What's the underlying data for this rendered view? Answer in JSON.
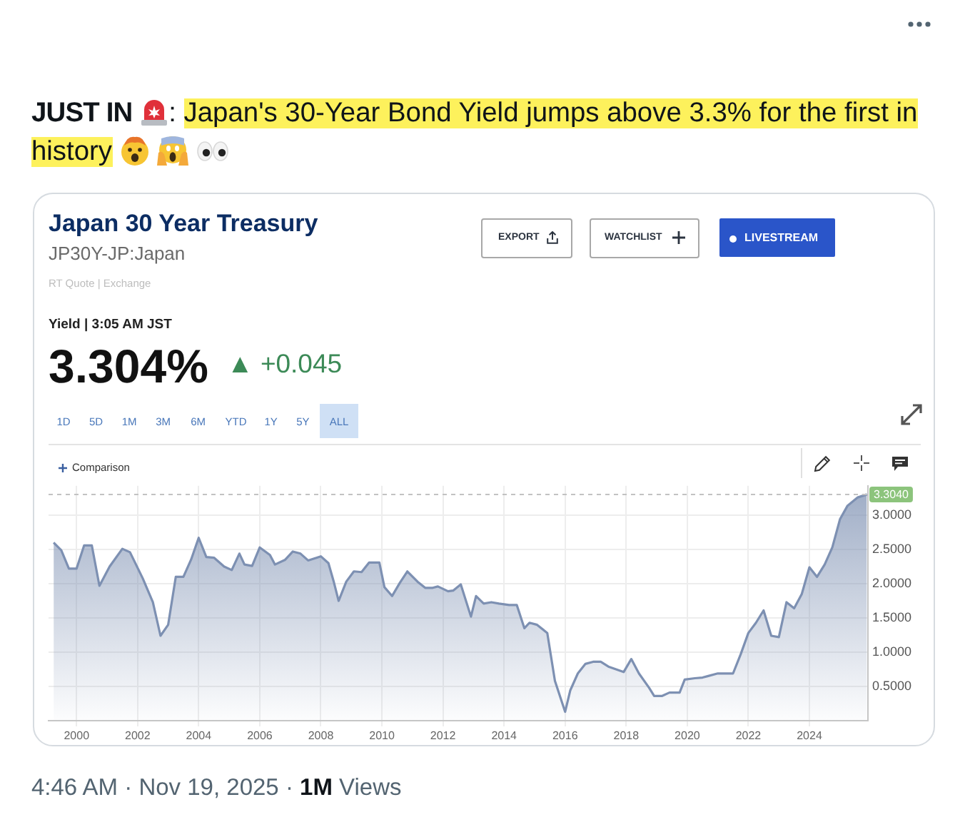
{
  "chart_data": {
    "type": "area",
    "title": "Japan 30 Year Treasury",
    "subtitle": "JP30Y-JP:Japan",
    "annotations": [
      "JUST IN",
      ":",
      "Japan's 30-Year Bond Yield jumps above 3.3% for the first in",
      "history",
      "RT Quote | Exchange",
      "Yield | 3:05 AM JST",
      "3.304%",
      "▲ +0.045",
      "EXPORT",
      "WATCHLIST",
      "LIVESTREAM",
      "1D",
      "5D",
      "1M",
      "3M",
      "6M",
      "YTD",
      "1Y",
      "5Y",
      "ALL",
      "Comparison",
      "4:46 AM · Nov 19, 2025 ·",
      "1M",
      "Views"
    ],
    "x": [
      "1999-04",
      "1999-07",
      "1999-10",
      "2000-01",
      "2000-04",
      "2000-07",
      "2000-10",
      "2001-02",
      "2001-07",
      "2001-10",
      "2002-03",
      "2002-07",
      "2002-10",
      "2003-01",
      "2003-04",
      "2003-07",
      "2003-10",
      "2004-01",
      "2004-04",
      "2004-07",
      "2004-11",
      "2005-02",
      "2005-05",
      "2005-07",
      "2005-10",
      "2006-01",
      "2006-05",
      "2006-07",
      "2006-11",
      "2007-02",
      "2007-05",
      "2007-08",
      "2008-01",
      "2008-04",
      "2008-06",
      "2008-08",
      "2008-11",
      "2009-02",
      "2009-05",
      "2009-08",
      "2009-12",
      "2010-02",
      "2010-05",
      "2010-08",
      "2010-11",
      "2011-03",
      "2011-06",
      "2011-09",
      "2011-11",
      "2012-03",
      "2012-05",
      "2012-08",
      "2012-12",
      "2013-02",
      "2013-05",
      "2013-08",
      "2013-11",
      "2014-03",
      "2014-06",
      "2014-09",
      "2014-11",
      "2015-02",
      "2015-06",
      "2015-09",
      "2016-01",
      "2016-03",
      "2016-06",
      "2016-09",
      "2016-12",
      "2017-03",
      "2017-06",
      "2017-12",
      "2018-03",
      "2018-06",
      "2018-10",
      "2018-12",
      "2019-03",
      "2019-06",
      "2019-10",
      "2019-12",
      "2020-04",
      "2020-07",
      "2020-09",
      "2021-01",
      "2021-04",
      "2021-07",
      "2021-10",
      "2022-01",
      "2022-04",
      "2022-07",
      "2022-10",
      "2023-01",
      "2023-04",
      "2023-07",
      "2023-10",
      "2024-01",
      "2024-04",
      "2024-07",
      "2024-10",
      "2025-01",
      "2025-04",
      "2025-08",
      "2025-11-19"
    ],
    "values": [
      2.6,
      2.49,
      2.22,
      2.22,
      2.56,
      2.56,
      1.97,
      2.25,
      2.51,
      2.46,
      2.08,
      1.73,
      1.24,
      1.4,
      2.1,
      2.1,
      2.35,
      2.67,
      2.39,
      2.38,
      2.25,
      2.2,
      2.44,
      2.28,
      2.26,
      2.53,
      2.42,
      2.28,
      2.35,
      2.47,
      2.44,
      2.34,
      2.4,
      2.3,
      2.04,
      1.75,
      2.03,
      2.18,
      2.17,
      2.31,
      2.31,
      1.95,
      1.82,
      2.01,
      2.18,
      2.03,
      1.94,
      1.94,
      1.96,
      1.89,
      1.9,
      1.99,
      1.52,
      1.82,
      1.71,
      1.73,
      1.71,
      1.69,
      1.69,
      1.35,
      1.43,
      1.4,
      1.28,
      0.58,
      0.13,
      0.44,
      0.69,
      0.83,
      0.86,
      0.86,
      0.79,
      0.71,
      0.9,
      0.69,
      0.48,
      0.36,
      0.36,
      0.41,
      0.41,
      0.6,
      0.62,
      0.63,
      0.65,
      0.69,
      0.69,
      0.69,
      0.97,
      1.28,
      1.43,
      1.61,
      1.24,
      1.22,
      1.73,
      1.64,
      1.85,
      2.24,
      2.1,
      2.28,
      2.53,
      2.94,
      3.14,
      3.26,
      3.304
    ],
    "color": "#7d90b2",
    "xlim": [
      "1999-02",
      "2025-12"
    ],
    "xticks": [
      "2000",
      "2002",
      "2004",
      "2006",
      "2008",
      "2010",
      "2012",
      "2014",
      "2016",
      "2018",
      "2020",
      "2022",
      "2024"
    ],
    "ylim": [
      0,
      3.43
    ],
    "yticks": [
      {
        "value": 0.5,
        "label": "0.5000"
      },
      {
        "value": 1,
        "label": "1.0000"
      },
      {
        "value": 1.5,
        "label": "1.5000"
      },
      {
        "value": 2,
        "label": "2.0000"
      },
      {
        "value": 2.5,
        "label": "2.5000"
      },
      {
        "value": 3,
        "label": "3.0000"
      }
    ],
    "ref_lines": [
      {
        "axis": "y",
        "value": 3.304,
        "label": "3.3040",
        "line_style": "dashed"
      }
    ],
    "grid": true,
    "marker": "none",
    "legend": false
  }
}
